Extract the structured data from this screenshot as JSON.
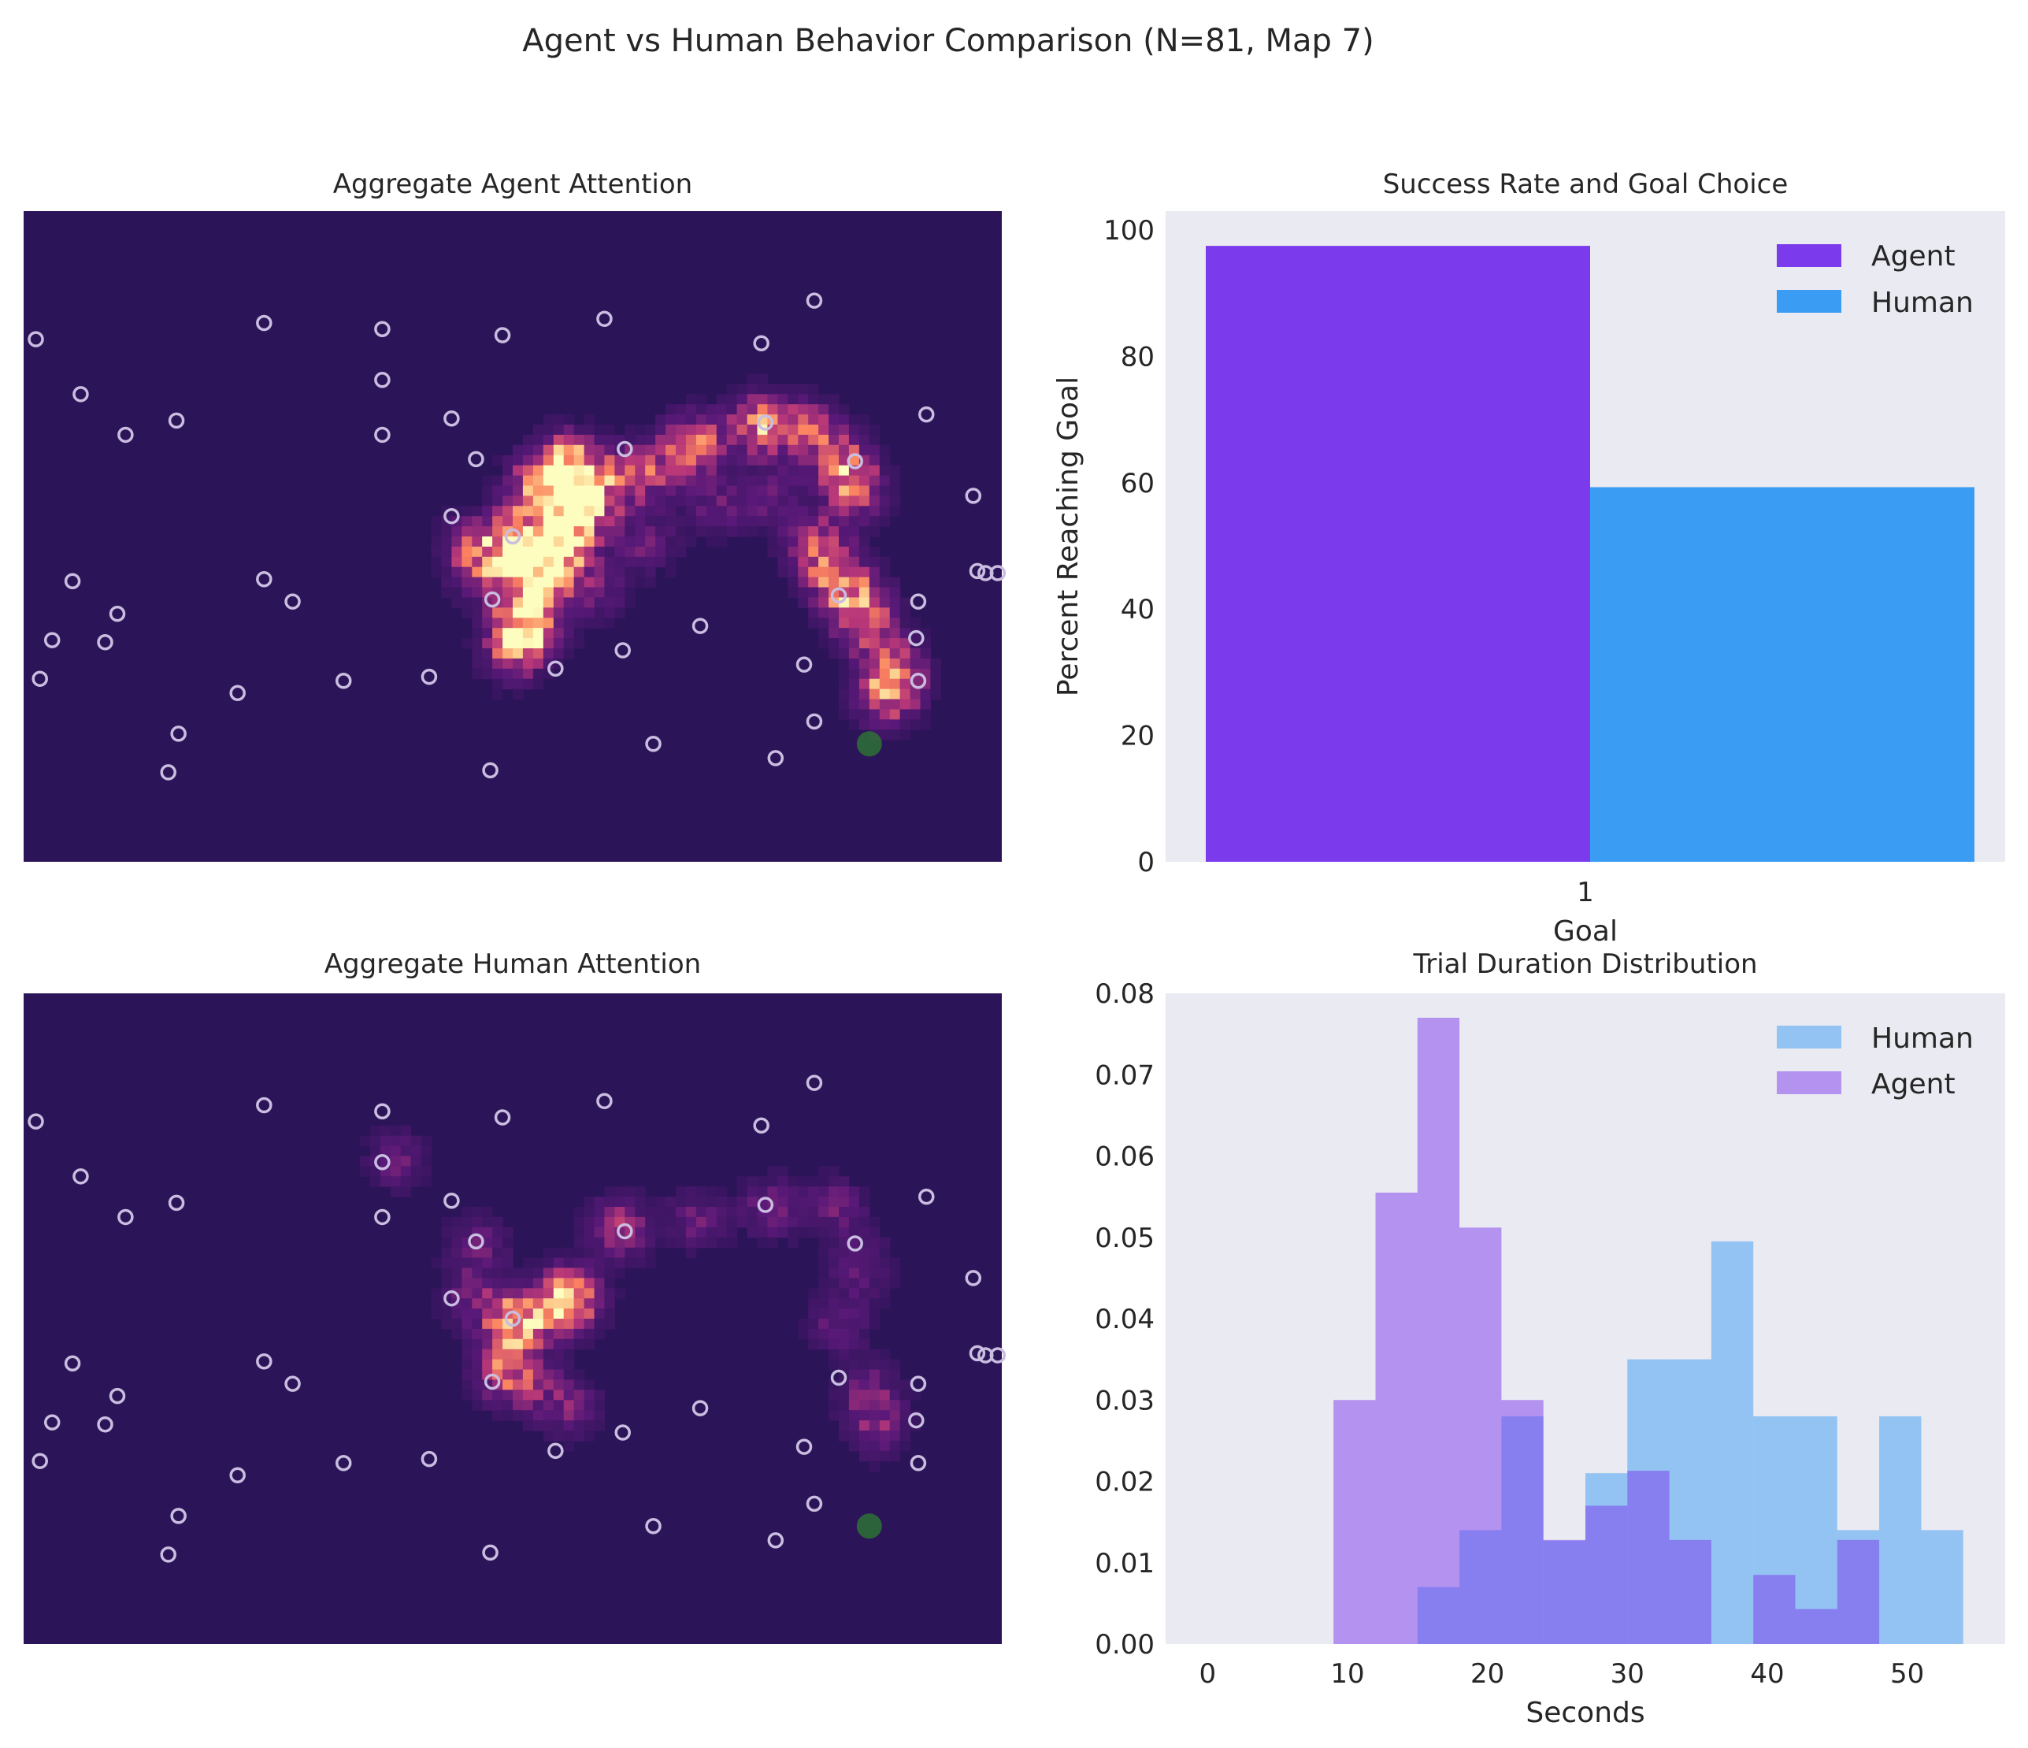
{
  "figure": {
    "suptitle": "Agent vs Human Behavior Comparison (N=81, Map 7)"
  },
  "colors": {
    "agent": "#7c3aed",
    "human": "#3b9cf3",
    "axes_bg": "#eaeaf2",
    "heat_bg": "#2c1458",
    "goal": "#2e7d32",
    "marker": "#c9bde0"
  },
  "chart_data": [
    {
      "type": "heatmap",
      "title": "Aggregate Agent Attention",
      "grid": {
        "cols": 48,
        "rows": 32
      },
      "markers": [
        [
          0.6,
          6.3
        ],
        [
          2.8,
          9
        ],
        [
          5,
          11
        ],
        [
          7.5,
          10.3
        ],
        [
          11.8,
          5.5
        ],
        [
          17.6,
          5.8
        ],
        [
          23.5,
          6.1
        ],
        [
          28.5,
          5.3
        ],
        [
          36.2,
          6.5
        ],
        [
          38.8,
          4.4
        ],
        [
          17.6,
          8.3
        ],
        [
          17.6,
          11
        ],
        [
          21,
          10.2
        ],
        [
          22.2,
          12.2
        ],
        [
          21,
          15
        ],
        [
          24,
          16
        ],
        [
          29.5,
          11.7
        ],
        [
          36.4,
          10.4
        ],
        [
          44.3,
          10
        ],
        [
          40.8,
          12.3
        ],
        [
          46.6,
          14
        ],
        [
          47.2,
          17.8
        ],
        [
          47.8,
          17.8
        ],
        [
          2.4,
          18.2
        ],
        [
          4.6,
          19.8
        ],
        [
          1.4,
          21.1
        ],
        [
          4,
          21.2
        ],
        [
          0.8,
          23
        ],
        [
          11.8,
          18.1
        ],
        [
          13.2,
          19.2
        ],
        [
          10.5,
          23.7
        ],
        [
          15.7,
          23.1
        ],
        [
          19.9,
          22.9
        ],
        [
          23,
          19.1
        ],
        [
          26.1,
          22.5
        ],
        [
          33.2,
          20.4
        ],
        [
          38.3,
          22.3
        ],
        [
          43.9,
          19.2
        ],
        [
          43.8,
          21
        ],
        [
          43.9,
          23.1
        ],
        [
          29.4,
          21.6
        ],
        [
          38.8,
          25.1
        ],
        [
          7.6,
          25.7
        ],
        [
          7.1,
          27.6
        ],
        [
          22.9,
          27.5
        ],
        [
          30.9,
          26.2
        ],
        [
          36.9,
          26.9
        ],
        [
          40,
          18.9
        ],
        [
          46.8,
          17.7
        ]
      ],
      "goal": [
        41.5,
        26.2
      ],
      "hot": [
        [
          26.7,
          12.5,
          1.0
        ],
        [
          26.7,
          15.1,
          1.0
        ],
        [
          24,
          16.2,
          0.8
        ],
        [
          26.2,
          16.8,
          0.7
        ],
        [
          25.6,
          17.6,
          0.6
        ],
        [
          24.8,
          18.8,
          0.5
        ],
        [
          25,
          20.3,
          0.5
        ],
        [
          24.5,
          20.6,
          0.5
        ],
        [
          24,
          21.6,
          0.5
        ],
        [
          25.1,
          13.6,
          0.6
        ],
        [
          27.7,
          14.3,
          0.5
        ],
        [
          29.3,
          13.2,
          0.5
        ],
        [
          31,
          12.6,
          0.4
        ],
        [
          33,
          11.5,
          0.7
        ],
        [
          36.2,
          10.5,
          0.8
        ],
        [
          38.6,
          10.8,
          0.5
        ],
        [
          40.2,
          12.4,
          0.6
        ],
        [
          40.8,
          13.8,
          0.5
        ],
        [
          38.9,
          16.5,
          0.6
        ],
        [
          39.9,
          18.2,
          0.5
        ],
        [
          40.9,
          19.3,
          0.6
        ],
        [
          41.5,
          20.6,
          0.4
        ],
        [
          42.8,
          22.7,
          0.7
        ],
        [
          42.3,
          24,
          0.5
        ],
        [
          22,
          16.5,
          0.4
        ],
        [
          22.6,
          17.7,
          0.4
        ],
        [
          28.2,
          18.6,
          0.3
        ],
        [
          30.6,
          16.3,
          0.3
        ],
        [
          34,
          14.5,
          0.3
        ],
        [
          36.6,
          14,
          0.3
        ]
      ]
    },
    {
      "type": "bar",
      "title": "Success Rate and Goal Choice",
      "categories": [
        "1"
      ],
      "series": [
        {
          "name": "Agent",
          "values": [
            97.5
          ]
        },
        {
          "name": "Human",
          "values": [
            59.3
          ]
        }
      ],
      "xlabel": "Goal",
      "ylabel": "Percent Reaching Goal",
      "ylim": [
        0,
        103
      ],
      "yticks": [
        "0",
        "20",
        "40",
        "60",
        "80",
        "100"
      ],
      "legend": "top-right"
    },
    {
      "type": "heatmap",
      "title": "Aggregate Human Attention",
      "grid": {
        "cols": 48,
        "rows": 32
      },
      "markers": [
        [
          0.6,
          6.3
        ],
        [
          2.8,
          9
        ],
        [
          5,
          11
        ],
        [
          7.5,
          10.3
        ],
        [
          11.8,
          5.5
        ],
        [
          17.6,
          5.8
        ],
        [
          23.5,
          6.1
        ],
        [
          28.5,
          5.3
        ],
        [
          36.2,
          6.5
        ],
        [
          38.8,
          4.4
        ],
        [
          17.6,
          8.3
        ],
        [
          17.6,
          11
        ],
        [
          21,
          10.2
        ],
        [
          22.2,
          12.2
        ],
        [
          21,
          15
        ],
        [
          24,
          16
        ],
        [
          29.5,
          11.7
        ],
        [
          36.4,
          10.4
        ],
        [
          44.3,
          10
        ],
        [
          40.8,
          12.3
        ],
        [
          46.6,
          14
        ],
        [
          47.2,
          17.8
        ],
        [
          47.8,
          17.8
        ],
        [
          2.4,
          18.2
        ],
        [
          4.6,
          19.8
        ],
        [
          1.4,
          21.1
        ],
        [
          4,
          21.2
        ],
        [
          0.8,
          23
        ],
        [
          11.8,
          18.1
        ],
        [
          13.2,
          19.2
        ],
        [
          10.5,
          23.7
        ],
        [
          15.7,
          23.1
        ],
        [
          19.9,
          22.9
        ],
        [
          23,
          19.1
        ],
        [
          26.1,
          22.5
        ],
        [
          33.2,
          20.4
        ],
        [
          38.3,
          22.3
        ],
        [
          43.9,
          19.2
        ],
        [
          43.8,
          21
        ],
        [
          43.9,
          23.1
        ],
        [
          29.4,
          21.6
        ],
        [
          38.8,
          25.1
        ],
        [
          7.6,
          25.7
        ],
        [
          7.1,
          27.6
        ],
        [
          22.9,
          27.5
        ],
        [
          30.9,
          26.2
        ],
        [
          36.9,
          26.9
        ],
        [
          40,
          18.9
        ],
        [
          46.8,
          17.7
        ]
      ],
      "goal": [
        41.5,
        26.2
      ],
      "hot": [
        [
          26.7,
          15.1,
          1.0
        ],
        [
          24.2,
          16.2,
          0.95
        ],
        [
          23.6,
          18.6,
          0.6
        ],
        [
          29.2,
          11.6,
          0.5
        ],
        [
          33,
          11.1,
          0.3
        ],
        [
          36.7,
          10.6,
          0.35
        ],
        [
          39.9,
          10.5,
          0.3
        ],
        [
          41.1,
          13.4,
          0.3
        ],
        [
          41.8,
          21.3,
          0.35
        ],
        [
          22.3,
          12.4,
          0.3
        ],
        [
          22,
          15,
          0.3
        ],
        [
          25.2,
          19.5,
          0.25
        ],
        [
          26.9,
          20.4,
          0.3
        ],
        [
          40,
          16.2,
          0.3
        ],
        [
          41.5,
          19.5,
          0.3
        ],
        [
          18.3,
          8.2,
          0.3
        ]
      ]
    },
    {
      "type": "histogram",
      "title": "Trial Duration Distribution",
      "xlabel": "Seconds",
      "ylabel": "",
      "xlim": [
        -3,
        57
      ],
      "ylim": [
        0,
        0.08
      ],
      "xticks": [
        "0",
        "10",
        "20",
        "30",
        "40",
        "50"
      ],
      "yticks": [
        "0.00",
        "0.01",
        "0.02",
        "0.03",
        "0.04",
        "0.05",
        "0.06",
        "0.07",
        "0.08"
      ],
      "legend": "top-right",
      "series": [
        {
          "name": "Human",
          "edges": [
            15,
            18,
            21,
            24,
            27,
            30,
            33,
            36,
            39,
            42,
            45,
            48,
            51,
            54
          ],
          "values": [
            0.007,
            0.014,
            0.028,
            0.0127,
            0.021,
            0.035,
            0.035,
            0.0495,
            0.028,
            0.028,
            0.014,
            0.028,
            0.014
          ]
        },
        {
          "name": "Agent",
          "edges": [
            9,
            12,
            15,
            18,
            21,
            24,
            27,
            30,
            33,
            36,
            39,
            42,
            45,
            48
          ],
          "values": [
            0.03,
            0.0555,
            0.077,
            0.0512,
            0.03,
            0.0128,
            0.017,
            0.0213,
            0.0128,
            0,
            0.0085,
            0.0043,
            0.0128
          ]
        }
      ]
    }
  ]
}
